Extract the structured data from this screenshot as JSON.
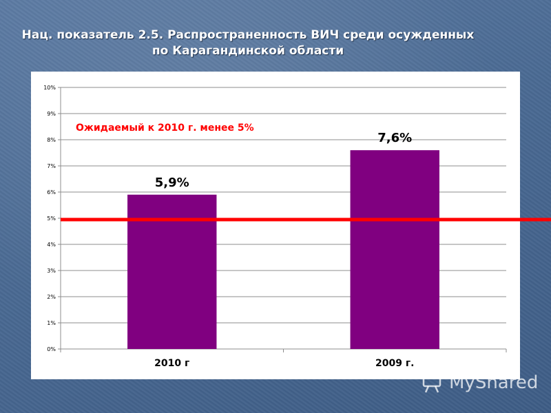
{
  "title": {
    "line1": "Нац. показатель 2.5. Распространенность ВИЧ среди осужденных",
    "line2": "по Карагандинской области"
  },
  "watermark": {
    "text": "MyShared",
    "icon": "presentation-board-icon"
  },
  "chart_data": {
    "type": "bar",
    "categories": [
      "2010 г",
      "2009 г."
    ],
    "values": [
      5.9,
      7.6
    ],
    "data_labels": [
      "5,9%",
      "7,6%"
    ],
    "y_ticks": [
      "0%",
      "1%",
      "2%",
      "3%",
      "4%",
      "5%",
      "6%",
      "7%",
      "8%",
      "9%",
      "10%"
    ],
    "ylim": [
      0,
      10
    ],
    "grid": true,
    "bar_color": "#800080",
    "target": {
      "value": 5,
      "color": "#ff0000",
      "label": "Ожидаемый к 2010 г. менее 5%"
    }
  }
}
